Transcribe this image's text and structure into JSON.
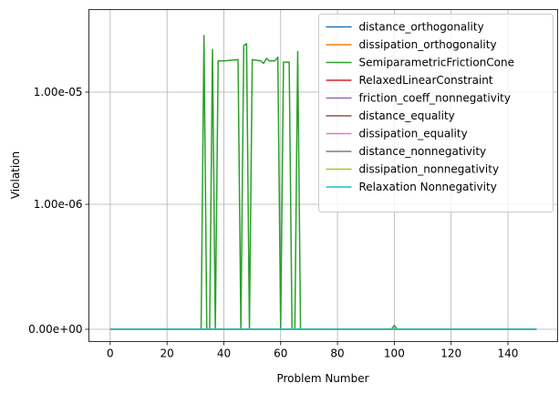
{
  "chart_data": {
    "type": "line",
    "title": "",
    "xlabel": "Problem Number",
    "ylabel": "Violation",
    "xlim": [
      -7.5,
      157.5
    ],
    "x_ticks": [
      0,
      20,
      40,
      60,
      80,
      100,
      120,
      140
    ],
    "y_ticks": [
      {
        "value": 0,
        "label": "0.00e+00"
      },
      {
        "value": 1e-06,
        "label": "1.00e-06"
      },
      {
        "value": 1e-05,
        "label": "1.00e-05"
      }
    ],
    "y_scale": "symlog",
    "grid": true,
    "legend_position": "top-right",
    "series": [
      {
        "name": "distance_orthogonality",
        "color": "#1f77b4",
        "points": [
          [
            0,
            0
          ],
          [
            150,
            0
          ]
        ]
      },
      {
        "name": "dissipation_orthogonality",
        "color": "#ff7f0e",
        "points": [
          [
            0,
            0
          ],
          [
            150,
            0
          ]
        ]
      },
      {
        "name": "SemiparametricFrictionCone",
        "color": "#2ca02c",
        "points": [
          [
            0,
            0
          ],
          [
            32,
            0
          ],
          [
            33,
            3.2e-05
          ],
          [
            34,
            0
          ],
          [
            35,
            0
          ],
          [
            36,
            2.4e-05
          ],
          [
            37,
            0
          ],
          [
            38,
            1.9e-05
          ],
          [
            40,
            1.9e-05
          ],
          [
            45,
            1.95e-05
          ],
          [
            46,
            0
          ],
          [
            47,
            2.6e-05
          ],
          [
            48,
            2.7e-05
          ],
          [
            49,
            0
          ],
          [
            50,
            1.95e-05
          ],
          [
            53,
            1.9e-05
          ],
          [
            54,
            1.8e-05
          ],
          [
            55,
            2e-05
          ],
          [
            56,
            1.9e-05
          ],
          [
            58,
            1.9e-05
          ],
          [
            59,
            2.05e-05
          ],
          [
            60,
            0
          ],
          [
            61,
            1.85e-05
          ],
          [
            63,
            1.85e-05
          ],
          [
            64,
            0
          ],
          [
            65,
            0
          ],
          [
            66,
            2.3e-05
          ],
          [
            67,
            0
          ],
          [
            99,
            0
          ],
          [
            100,
            3e-08
          ],
          [
            101,
            0
          ],
          [
            150,
            0
          ]
        ]
      },
      {
        "name": "RelaxedLinearConstraint",
        "color": "#d62728",
        "points": [
          [
            0,
            0
          ],
          [
            150,
            0
          ]
        ]
      },
      {
        "name": "friction_coeff_nonnegativity",
        "color": "#9467bd",
        "points": [
          [
            0,
            0
          ],
          [
            150,
            0
          ]
        ]
      },
      {
        "name": "distance_equality",
        "color": "#8c564b",
        "points": [
          [
            0,
            0
          ],
          [
            150,
            0
          ]
        ]
      },
      {
        "name": "dissipation_equality",
        "color": "#e377c2",
        "points": [
          [
            0,
            0
          ],
          [
            150,
            0
          ]
        ]
      },
      {
        "name": "distance_nonnegativity",
        "color": "#7f7f7f",
        "points": [
          [
            0,
            0
          ],
          [
            150,
            0
          ]
        ]
      },
      {
        "name": "dissipation_nonnegativity",
        "color": "#bcbd22",
        "points": [
          [
            0,
            0
          ],
          [
            150,
            0
          ]
        ]
      },
      {
        "name": "Relaxation Nonnegativity",
        "color": "#17becf",
        "points": [
          [
            0,
            0
          ],
          [
            150,
            0
          ]
        ]
      }
    ]
  }
}
